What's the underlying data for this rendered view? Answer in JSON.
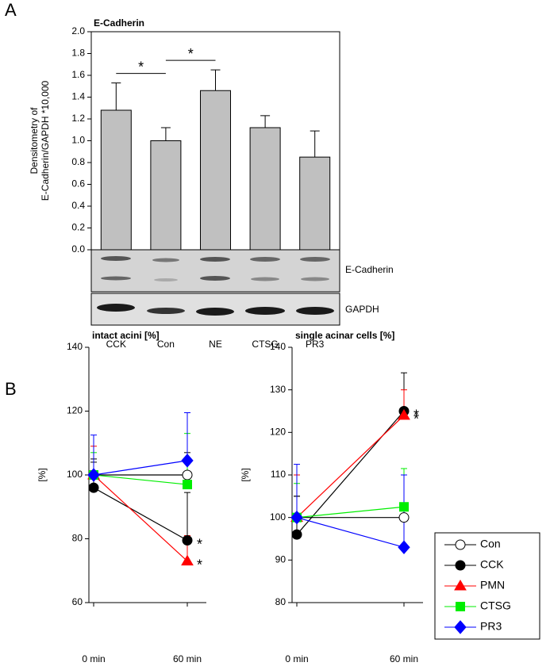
{
  "panel_labels": [
    "A",
    "B"
  ],
  "chart_data": [
    {
      "type": "bar",
      "title": "E-Cadherin",
      "y_label": [
        "Densitometry of",
        "E-Cadherin/GAPDH *10,000"
      ],
      "categories": [
        "CCK",
        "Con",
        "NE",
        "CTSG",
        "PR3"
      ],
      "values": [
        1.28,
        1.0,
        1.46,
        1.12,
        0.85
      ],
      "errors": [
        0.25,
        0.12,
        0.19,
        0.11,
        0.24
      ],
      "color": "#c0c0c0",
      "ylim": [
        0,
        2.0
      ],
      "yticks": [
        {
          "value": 0,
          "label": "0.0"
        },
        0.2,
        0.4,
        0.6,
        0.8,
        {
          "value": 1.0,
          "label": "1.0"
        },
        1.2,
        1.4,
        1.6,
        1.8,
        {
          "value": 2.0,
          "label": "2.0"
        }
      ],
      "comparisons": [
        {
          "label": "*",
          "categories": [
            "CCK",
            "Con"
          ]
        },
        {
          "label": "*",
          "categories": [
            "Con",
            "NE"
          ]
        }
      ],
      "blot_labels": [
        "E-Cadherin",
        "GAPDH"
      ]
    },
    {
      "type": "line",
      "title": "intact acini [%]",
      "y_label": "[%]",
      "categories": [
        "0 min",
        "60 min"
      ],
      "ylim": [
        60,
        140
      ],
      "yticks": [
        60,
        80,
        100,
        120,
        140
      ],
      "series": [
        {
          "name": "Con",
          "color": "#000000",
          "marker": "open-circle",
          "values": [
            100,
            100
          ],
          "errors": [
            5,
            7
          ]
        },
        {
          "name": "CCK",
          "color": "#000000",
          "marker": "circle",
          "values": [
            96,
            79.5
          ],
          "errors": [
            8,
            15
          ]
        },
        {
          "name": "PMN",
          "color": "#ff0000",
          "marker": "triangle",
          "values": [
            100,
            73
          ],
          "errors": [
            9,
            8
          ]
        },
        {
          "name": "CTSG",
          "color": "#00ee00",
          "marker": "square",
          "values": [
            100,
            97
          ],
          "errors": [
            7,
            16
          ]
        },
        {
          "name": "PR3",
          "color": "#0000ff",
          "marker": "diamond",
          "values": [
            100,
            104.5
          ],
          "errors": [
            12.5,
            15
          ]
        }
      ],
      "annotations": [
        {
          "label": "*",
          "series": "CCK",
          "category": "60 min"
        },
        {
          "label": "*",
          "series": "PMN",
          "category": "60 min"
        }
      ]
    },
    {
      "type": "line",
      "title": "single acinar cells [%]",
      "y_label": "[%]",
      "categories": [
        "0 min",
        "60 min"
      ],
      "ylim": [
        80,
        140
      ],
      "yticks": [
        80,
        90,
        100,
        110,
        120,
        130,
        140
      ],
      "series": [
        {
          "name": "Con",
          "color": "#000000",
          "marker": "open-circle",
          "values": [
            100,
            100
          ],
          "errors": [
            5,
            10
          ]
        },
        {
          "name": "CCK",
          "color": "#000000",
          "marker": "circle",
          "values": [
            96,
            125
          ],
          "errors": [
            9,
            9
          ]
        },
        {
          "name": "PMN",
          "color": "#ff0000",
          "marker": "triangle",
          "values": [
            100,
            124
          ],
          "errors": [
            10,
            6
          ]
        },
        {
          "name": "CTSG",
          "color": "#00ee00",
          "marker": "square",
          "values": [
            100,
            102.5
          ],
          "errors": [
            8,
            9
          ]
        },
        {
          "name": "PR3",
          "color": "#0000ff",
          "marker": "diamond",
          "values": [
            100,
            93
          ],
          "errors": [
            12.5,
            17
          ]
        }
      ],
      "annotations": [
        {
          "label": "*",
          "series": "CCK",
          "category": "60 min"
        },
        {
          "label": "*",
          "series": "PMN",
          "category": "60 min"
        }
      ],
      "legend": "right"
    }
  ]
}
